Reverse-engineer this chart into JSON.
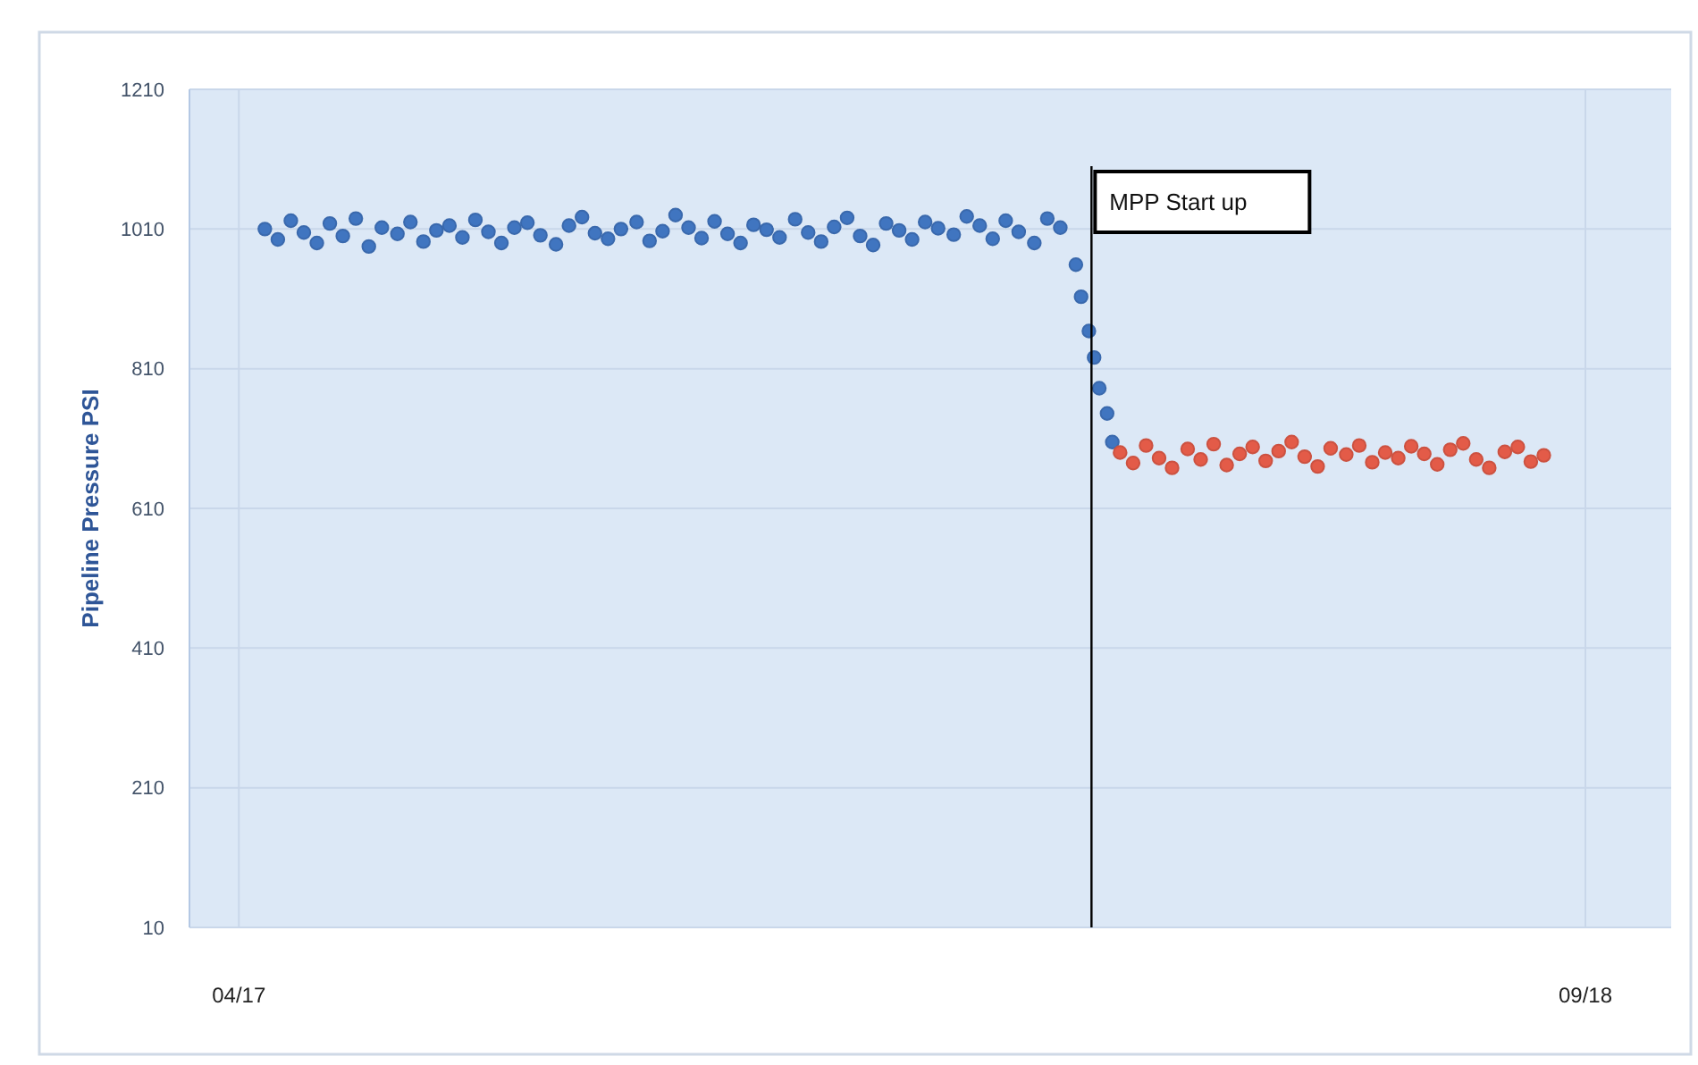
{
  "chart_data": {
    "type": "scatter",
    "ylabel": "Pipeline Pressure PSI",
    "xlim": [
      "2017-03-13",
      "2018-10-04"
    ],
    "xticks": [
      {
        "value": "2017-04-01",
        "label": "04/17"
      },
      {
        "value": "2018-09-01",
        "label": "09/18"
      }
    ],
    "ylim": [
      10,
      1210
    ],
    "yticks": [
      10,
      210,
      410,
      610,
      810,
      1010,
      1210
    ],
    "grid": true,
    "marker": "circle",
    "ref_lines": [
      {
        "axis": "x",
        "value": "2018-02-23",
        "label": "MPP Start up",
        "color": "#000000"
      }
    ],
    "series": [
      {
        "color": "#4075c0",
        "x": [
          "2017-04-11",
          "2017-04-16",
          "2017-04-21",
          "2017-04-26",
          "2017-05-01",
          "2017-05-06",
          "2017-05-11",
          "2017-05-16",
          "2017-05-21",
          "2017-05-26",
          "2017-06-01",
          "2017-06-06",
          "2017-06-11",
          "2017-06-16",
          "2017-06-21",
          "2017-06-26",
          "2017-07-01",
          "2017-07-06",
          "2017-07-11",
          "2017-07-16",
          "2017-07-21",
          "2017-07-26",
          "2017-08-01",
          "2017-08-06",
          "2017-08-11",
          "2017-08-16",
          "2017-08-21",
          "2017-08-26",
          "2017-09-01",
          "2017-09-06",
          "2017-09-11",
          "2017-09-16",
          "2017-09-21",
          "2017-09-26",
          "2017-10-01",
          "2017-10-06",
          "2017-10-11",
          "2017-10-16",
          "2017-10-21",
          "2017-10-26",
          "2017-11-01",
          "2017-11-06",
          "2017-11-11",
          "2017-11-16",
          "2017-11-21",
          "2017-11-26",
          "2017-12-01",
          "2017-12-06",
          "2017-12-11",
          "2017-12-16",
          "2017-12-21",
          "2017-12-26",
          "2018-01-01",
          "2018-01-06",
          "2018-01-11",
          "2018-01-16",
          "2018-01-21",
          "2018-01-26",
          "2018-02-01",
          "2018-02-06",
          "2018-02-11",
          "2018-02-17",
          "2018-02-19",
          "2018-02-22",
          "2018-02-24",
          "2018-02-26",
          "2018-03-01",
          "2018-03-03"
        ],
        "values": [
          1010,
          995,
          1022,
          1005,
          990,
          1018,
          1000,
          1025,
          985,
          1012,
          1003,
          1020,
          992,
          1008,
          1015,
          998,
          1023,
          1006,
          990,
          1012,
          1019,
          1001,
          988,
          1015,
          1027,
          1004,
          996,
          1010,
          1020,
          993,
          1007,
          1030,
          1012,
          997,
          1021,
          1003,
          990,
          1016,
          1009,
          998,
          1024,
          1005,
          992,
          1013,
          1026,
          1000,
          987,
          1018,
          1008,
          995,
          1020,
          1011,
          1002,
          1028,
          1015,
          996,
          1022,
          1006,
          990,
          1025,
          1012,
          959,
          913,
          864,
          826,
          782,
          746,
          705
        ]
      },
      {
        "color": "#e35b48",
        "x": [
          "2018-03-06",
          "2018-03-11",
          "2018-03-16",
          "2018-03-21",
          "2018-03-26",
          "2018-04-01",
          "2018-04-06",
          "2018-04-11",
          "2018-04-16",
          "2018-04-21",
          "2018-04-26",
          "2018-05-01",
          "2018-05-06",
          "2018-05-11",
          "2018-05-16",
          "2018-05-21",
          "2018-05-26",
          "2018-06-01",
          "2018-06-06",
          "2018-06-11",
          "2018-06-16",
          "2018-06-21",
          "2018-06-26",
          "2018-07-01",
          "2018-07-06",
          "2018-07-11",
          "2018-07-16",
          "2018-07-21",
          "2018-07-26",
          "2018-08-01",
          "2018-08-06",
          "2018-08-11",
          "2018-08-16"
        ],
        "values": [
          690,
          675,
          700,
          682,
          668,
          695,
          680,
          702,
          672,
          688,
          698,
          678,
          692,
          705,
          684,
          670,
          696,
          687,
          700,
          676,
          690,
          682,
          699,
          688,
          673,
          694,
          703,
          680,
          668,
          691,
          698,
          677,
          686
        ]
      }
    ]
  }
}
